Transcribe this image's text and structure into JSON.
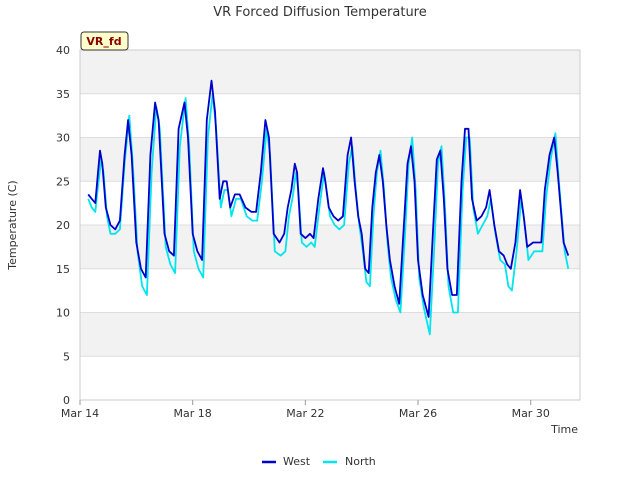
{
  "chart_data": {
    "type": "line",
    "title": "VR Forced Diffusion Temperature",
    "xlabel": "Time",
    "ylabel": "Temperature (C)",
    "site_label": "VR_fd",
    "xlim": [
      "2024-03-14",
      "2024-03-31T18:00"
    ],
    "ylim": [
      0,
      40
    ],
    "y_ticks": [
      "0",
      "5",
      "10",
      "15",
      "20",
      "25",
      "30",
      "35",
      "40"
    ],
    "x_ticks": [
      {
        "date": "2024-03-14",
        "label": "Mar 14"
      },
      {
        "date": "2024-03-18",
        "label": "Mar 18"
      },
      {
        "date": "2024-03-22",
        "label": "Mar 22"
      },
      {
        "date": "2024-03-26",
        "label": "Mar 26"
      },
      {
        "date": "2024-03-30",
        "label": "Mar 30"
      }
    ],
    "grid": true,
    "legend_position": "bottom",
    "series": [
      {
        "name": "West",
        "color": "#0000cc",
        "points": [
          [
            "2024-03-14T07:00",
            23.5
          ],
          [
            "2024-03-14T10:00",
            23.0
          ],
          [
            "2024-03-14T13:00",
            22.5
          ],
          [
            "2024-03-14T15:00",
            25.5
          ],
          [
            "2024-03-14T17:00",
            28.5
          ],
          [
            "2024-03-14T19:00",
            27.0
          ],
          [
            "2024-03-14T22:00",
            22.0
          ],
          [
            "2024-03-15T02:00",
            20.0
          ],
          [
            "2024-03-15T06:00",
            19.5
          ],
          [
            "2024-03-15T10:00",
            20.5
          ],
          [
            "2024-03-15T14:00",
            28.0
          ],
          [
            "2024-03-15T17:00",
            32.0
          ],
          [
            "2024-03-15T20:00",
            28.0
          ],
          [
            "2024-03-16T00:00",
            18.0
          ],
          [
            "2024-03-16T04:00",
            15.0
          ],
          [
            "2024-03-16T08:00",
            14.0
          ],
          [
            "2024-03-16T12:00",
            28.0
          ],
          [
            "2024-03-16T16:00",
            34.0
          ],
          [
            "2024-03-16T19:00",
            32.0
          ],
          [
            "2024-03-17T00:00",
            19.0
          ],
          [
            "2024-03-17T04:00",
            17.0
          ],
          [
            "2024-03-17T08:00",
            16.5
          ],
          [
            "2024-03-17T12:00",
            31.0
          ],
          [
            "2024-03-17T17:00",
            34.0
          ],
          [
            "2024-03-17T20:00",
            30.0
          ],
          [
            "2024-03-18T00:00",
            19.0
          ],
          [
            "2024-03-18T04:00",
            17.0
          ],
          [
            "2024-03-18T08:00",
            16.0
          ],
          [
            "2024-03-18T12:00",
            32.0
          ],
          [
            "2024-03-18T16:00",
            36.5
          ],
          [
            "2024-03-18T19:00",
            33.0
          ],
          [
            "2024-03-18T23:00",
            23.0
          ],
          [
            "2024-03-19T02:00",
            25.0
          ],
          [
            "2024-03-19T05:00",
            25.0
          ],
          [
            "2024-03-19T08:00",
            22.0
          ],
          [
            "2024-03-19T12:00",
            23.5
          ],
          [
            "2024-03-19T16:00",
            23.5
          ],
          [
            "2024-03-19T21:00",
            22.0
          ],
          [
            "2024-03-20T02:00",
            21.5
          ],
          [
            "2024-03-20T06:00",
            21.5
          ],
          [
            "2024-03-20T10:00",
            26.0
          ],
          [
            "2024-03-20T14:00",
            32.0
          ],
          [
            "2024-03-20T17:00",
            30.0
          ],
          [
            "2024-03-20T21:00",
            19.0
          ],
          [
            "2024-03-21T02:00",
            18.0
          ],
          [
            "2024-03-21T06:00",
            19.0
          ],
          [
            "2024-03-21T09:00",
            22.0
          ],
          [
            "2024-03-21T12:00",
            24.0
          ],
          [
            "2024-03-21T15:00",
            27.0
          ],
          [
            "2024-03-21T17:00",
            26.0
          ],
          [
            "2024-03-21T20:00",
            19.0
          ],
          [
            "2024-03-22T00:00",
            18.5
          ],
          [
            "2024-03-22T04:00",
            19.0
          ],
          [
            "2024-03-22T07:00",
            18.5
          ],
          [
            "2024-03-22T11:00",
            23.0
          ],
          [
            "2024-03-22T15:00",
            26.5
          ],
          [
            "2024-03-22T17:00",
            25.0
          ],
          [
            "2024-03-22T20:00",
            22.0
          ],
          [
            "2024-03-23T00:00",
            21.0
          ],
          [
            "2024-03-23T04:00",
            20.5
          ],
          [
            "2024-03-23T08:00",
            21.0
          ],
          [
            "2024-03-23T12:00",
            28.0
          ],
          [
            "2024-03-23T15:00",
            30.0
          ],
          [
            "2024-03-23T18:00",
            25.0
          ],
          [
            "2024-03-23T21:00",
            21.0
          ],
          [
            "2024-03-24T00:00",
            19.0
          ],
          [
            "2024-03-24T03:00",
            15.0
          ],
          [
            "2024-03-24T06:00",
            14.5
          ],
          [
            "2024-03-24T09:00",
            22.0
          ],
          [
            "2024-03-24T12:00",
            26.0
          ],
          [
            "2024-03-24T15:00",
            28.0
          ],
          [
            "2024-03-24T18:00",
            25.0
          ],
          [
            "2024-03-24T21:00",
            20.0
          ],
          [
            "2024-03-25T00:00",
            16.0
          ],
          [
            "2024-03-25T04:00",
            13.0
          ],
          [
            "2024-03-25T08:00",
            11.0
          ],
          [
            "2024-03-25T12:00",
            20.0
          ],
          [
            "2024-03-25T15:00",
            27.0
          ],
          [
            "2024-03-25T18:00",
            29.0
          ],
          [
            "2024-03-25T21:00",
            25.0
          ],
          [
            "2024-03-26T00:00",
            16.0
          ],
          [
            "2024-03-26T04:00",
            12.0
          ],
          [
            "2024-03-26T09:00",
            9.5
          ],
          [
            "2024-03-26T13:00",
            20.0
          ],
          [
            "2024-03-26T16:00",
            27.5
          ],
          [
            "2024-03-26T19:00",
            28.5
          ],
          [
            "2024-03-26T22:00",
            23.0
          ],
          [
            "2024-03-27T01:00",
            15.0
          ],
          [
            "2024-03-27T05:00",
            12.0
          ],
          [
            "2024-03-27T09:00",
            12.0
          ],
          [
            "2024-03-27T13:00",
            25.0
          ],
          [
            "2024-03-27T16:00",
            31.0
          ],
          [
            "2024-03-27T19:00",
            31.0
          ],
          [
            "2024-03-27T22:00",
            23.0
          ],
          [
            "2024-03-28T02:00",
            20.5
          ],
          [
            "2024-03-28T06:00",
            21.0
          ],
          [
            "2024-03-28T10:00",
            22.0
          ],
          [
            "2024-03-28T13:00",
            24.0
          ],
          [
            "2024-03-28T17:00",
            20.0
          ],
          [
            "2024-03-28T21:00",
            17.0
          ],
          [
            "2024-03-29T01:00",
            16.5
          ],
          [
            "2024-03-29T04:00",
            15.5
          ],
          [
            "2024-03-29T07:00",
            15.0
          ],
          [
            "2024-03-29T11:00",
            18.0
          ],
          [
            "2024-03-29T15:00",
            24.0
          ],
          [
            "2024-03-29T18:00",
            21.0
          ],
          [
            "2024-03-29T21:00",
            17.5
          ],
          [
            "2024-03-30T02:00",
            18.0
          ],
          [
            "2024-03-30T06:00",
            18.0
          ],
          [
            "2024-03-30T09:00",
            18.0
          ],
          [
            "2024-03-30T12:00",
            24.0
          ],
          [
            "2024-03-30T16:00",
            28.0
          ],
          [
            "2024-03-30T20:00",
            30.0
          ],
          [
            "2024-03-30T23:00",
            26.0
          ],
          [
            "2024-03-31T04:00",
            18.0
          ],
          [
            "2024-03-31T08:00",
            16.5
          ]
        ]
      },
      {
        "name": "North",
        "color": "#00e5ee",
        "points": [
          [
            "2024-03-14T07:00",
            23.0
          ],
          [
            "2024-03-14T10:00",
            22.0
          ],
          [
            "2024-03-14T13:00",
            21.5
          ],
          [
            "2024-03-14T15:00",
            24.0
          ],
          [
            "2024-03-14T18:00",
            27.5
          ],
          [
            "2024-03-14T20:00",
            26.0
          ],
          [
            "2024-03-14T23:00",
            21.0
          ],
          [
            "2024-03-15T02:00",
            19.0
          ],
          [
            "2024-03-15T06:00",
            19.0
          ],
          [
            "2024-03-15T10:00",
            19.5
          ],
          [
            "2024-03-15T14:00",
            27.0
          ],
          [
            "2024-03-15T18:00",
            32.5
          ],
          [
            "2024-03-15T21:00",
            27.0
          ],
          [
            "2024-03-16T01:00",
            17.0
          ],
          [
            "2024-03-16T05:00",
            13.0
          ],
          [
            "2024-03-16T09:00",
            12.0
          ],
          [
            "2024-03-16T13:00",
            26.0
          ],
          [
            "2024-03-16T17:00",
            33.5
          ],
          [
            "2024-03-16T20:00",
            31.0
          ],
          [
            "2024-03-17T01:00",
            17.5
          ],
          [
            "2024-03-17T05:00",
            15.5
          ],
          [
            "2024-03-17T09:00",
            14.5
          ],
          [
            "2024-03-17T13:00",
            29.0
          ],
          [
            "2024-03-17T18:00",
            34.5
          ],
          [
            "2024-03-17T21:00",
            29.0
          ],
          [
            "2024-03-18T01:00",
            17.0
          ],
          [
            "2024-03-18T05:00",
            15.0
          ],
          [
            "2024-03-18T09:00",
            14.0
          ],
          [
            "2024-03-18T13:00",
            30.0
          ],
          [
            "2024-03-18T17:00",
            35.0
          ],
          [
            "2024-03-18T20:00",
            31.0
          ],
          [
            "2024-03-19T00:00",
            22.0
          ],
          [
            "2024-03-19T03:00",
            24.0
          ],
          [
            "2024-03-19T06:00",
            24.0
          ],
          [
            "2024-03-19T09:00",
            21.0
          ],
          [
            "2024-03-19T13:00",
            23.0
          ],
          [
            "2024-03-19T17:00",
            23.0
          ],
          [
            "2024-03-19T22:00",
            21.0
          ],
          [
            "2024-03-20T03:00",
            20.5
          ],
          [
            "2024-03-20T07:00",
            20.5
          ],
          [
            "2024-03-20T11:00",
            25.0
          ],
          [
            "2024-03-20T15:00",
            31.0
          ],
          [
            "2024-03-20T18:00",
            28.0
          ],
          [
            "2024-03-20T22:00",
            17.0
          ],
          [
            "2024-03-21T03:00",
            16.5
          ],
          [
            "2024-03-21T07:00",
            17.0
          ],
          [
            "2024-03-21T10:00",
            21.0
          ],
          [
            "2024-03-21T13:00",
            23.0
          ],
          [
            "2024-03-21T16:00",
            26.0
          ],
          [
            "2024-03-21T18:00",
            24.0
          ],
          [
            "2024-03-21T21:00",
            18.0
          ],
          [
            "2024-03-22T01:00",
            17.5
          ],
          [
            "2024-03-22T05:00",
            18.0
          ],
          [
            "2024-03-22T08:00",
            17.5
          ],
          [
            "2024-03-22T12:00",
            22.0
          ],
          [
            "2024-03-22T16:00",
            26.0
          ],
          [
            "2024-03-22T18:00",
            24.0
          ],
          [
            "2024-03-22T21:00",
            21.0
          ],
          [
            "2024-03-23T01:00",
            20.0
          ],
          [
            "2024-03-23T05:00",
            19.5
          ],
          [
            "2024-03-23T09:00",
            20.0
          ],
          [
            "2024-03-23T13:00",
            27.0
          ],
          [
            "2024-03-23T16:00",
            29.0
          ],
          [
            "2024-03-23T19:00",
            24.0
          ],
          [
            "2024-03-23T22:00",
            20.0
          ],
          [
            "2024-03-24T01:00",
            17.0
          ],
          [
            "2024-03-24T04:00",
            13.5
          ],
          [
            "2024-03-24T07:00",
            13.0
          ],
          [
            "2024-03-24T10:00",
            21.0
          ],
          [
            "2024-03-24T13:00",
            26.0
          ],
          [
            "2024-03-24T16:00",
            28.5
          ],
          [
            "2024-03-24T19:00",
            24.0
          ],
          [
            "2024-03-24T22:00",
            18.0
          ],
          [
            "2024-03-25T01:00",
            14.0
          ],
          [
            "2024-03-25T05:00",
            11.5
          ],
          [
            "2024-03-25T09:00",
            10.0
          ],
          [
            "2024-03-25T13:00",
            19.0
          ],
          [
            "2024-03-25T16:00",
            27.0
          ],
          [
            "2024-03-25T19:00",
            30.0
          ],
          [
            "2024-03-25T22:00",
            24.0
          ],
          [
            "2024-03-26T01:00",
            14.0
          ],
          [
            "2024-03-26T05:00",
            10.5
          ],
          [
            "2024-03-26T10:00",
            7.5
          ],
          [
            "2024-03-26T14:00",
            18.0
          ],
          [
            "2024-03-26T17:00",
            27.0
          ],
          [
            "2024-03-26T20:00",
            29.0
          ],
          [
            "2024-03-26T23:00",
            22.0
          ],
          [
            "2024-03-27T02:00",
            13.0
          ],
          [
            "2024-03-27T06:00",
            10.0
          ],
          [
            "2024-03-27T10:00",
            10.0
          ],
          [
            "2024-03-27T14:00",
            24.0
          ],
          [
            "2024-03-27T17:00",
            30.0
          ],
          [
            "2024-03-27T20:00",
            30.0
          ],
          [
            "2024-03-27T23:00",
            22.0
          ],
          [
            "2024-03-28T03:00",
            19.0
          ],
          [
            "2024-03-28T07:00",
            20.0
          ],
          [
            "2024-03-28T11:00",
            21.0
          ],
          [
            "2024-03-28T14:00",
            23.0
          ],
          [
            "2024-03-28T18:00",
            19.0
          ],
          [
            "2024-03-28T22:00",
            16.0
          ],
          [
            "2024-03-29T02:00",
            15.5
          ],
          [
            "2024-03-29T05:00",
            13.0
          ],
          [
            "2024-03-29T08:00",
            12.5
          ],
          [
            "2024-03-29T12:00",
            17.0
          ],
          [
            "2024-03-29T16:00",
            23.0
          ],
          [
            "2024-03-29T19:00",
            20.0
          ],
          [
            "2024-03-29T22:00",
            16.0
          ],
          [
            "2024-03-30T03:00",
            17.0
          ],
          [
            "2024-03-30T07:00",
            17.0
          ],
          [
            "2024-03-30T10:00",
            17.0
          ],
          [
            "2024-03-30T13:00",
            23.0
          ],
          [
            "2024-03-30T17:00",
            27.5
          ],
          [
            "2024-03-30T21:00",
            30.5
          ],
          [
            "2024-03-31T00:00",
            25.0
          ],
          [
            "2024-03-31T05:00",
            17.0
          ],
          [
            "2024-03-31T08:00",
            15.0
          ]
        ]
      }
    ]
  }
}
